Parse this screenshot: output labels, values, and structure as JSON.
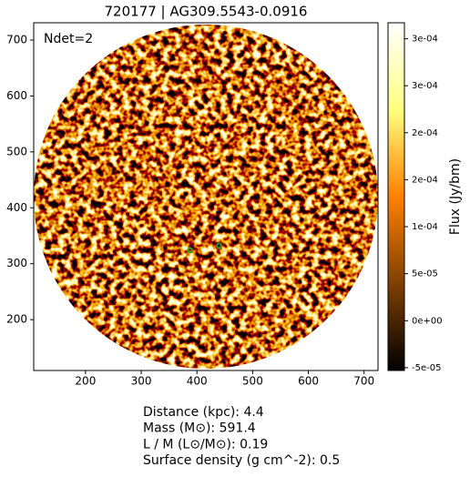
{
  "chart_data": {
    "type": "image",
    "title": "720177 | AG309.5543-0.0916",
    "annotation": "Ndet=2",
    "colorbar_label": "Flux (Jy/bm)",
    "colormap": "afmhot",
    "xlim": [
      107,
      725
    ],
    "ylim": [
      109,
      731
    ],
    "xticks": [
      200,
      300,
      400,
      500,
      600,
      700
    ],
    "yticks": [
      200,
      300,
      400,
      500,
      600,
      700
    ],
    "clim": [
      -5.3e-05,
      0.000317
    ],
    "cticks": [
      {
        "value": -5e-05,
        "label": "-5e-05"
      },
      {
        "value": 0,
        "label": "0e+00"
      },
      {
        "value": 5e-05,
        "label": "5e-05"
      },
      {
        "value": 0.0001,
        "label": "1e-04"
      },
      {
        "value": 0.00015,
        "label": "2e-04"
      },
      {
        "value": 0.0002,
        "label": "2e-04"
      },
      {
        "value": 0.00025,
        "label": "3e-04"
      },
      {
        "value": 0.0003,
        "label": "3e-04"
      }
    ],
    "sources": {
      "color": "#2ca02c",
      "x": [
        388,
        440
      ],
      "y": [
        324,
        332
      ]
    },
    "info": [
      "Distance (kpc): 4.4",
      "Mass (M⊙): 591.4",
      "L / M (L⊙/M⊙): 0.19",
      "Surface density (g cm^-2): 0.5"
    ]
  }
}
